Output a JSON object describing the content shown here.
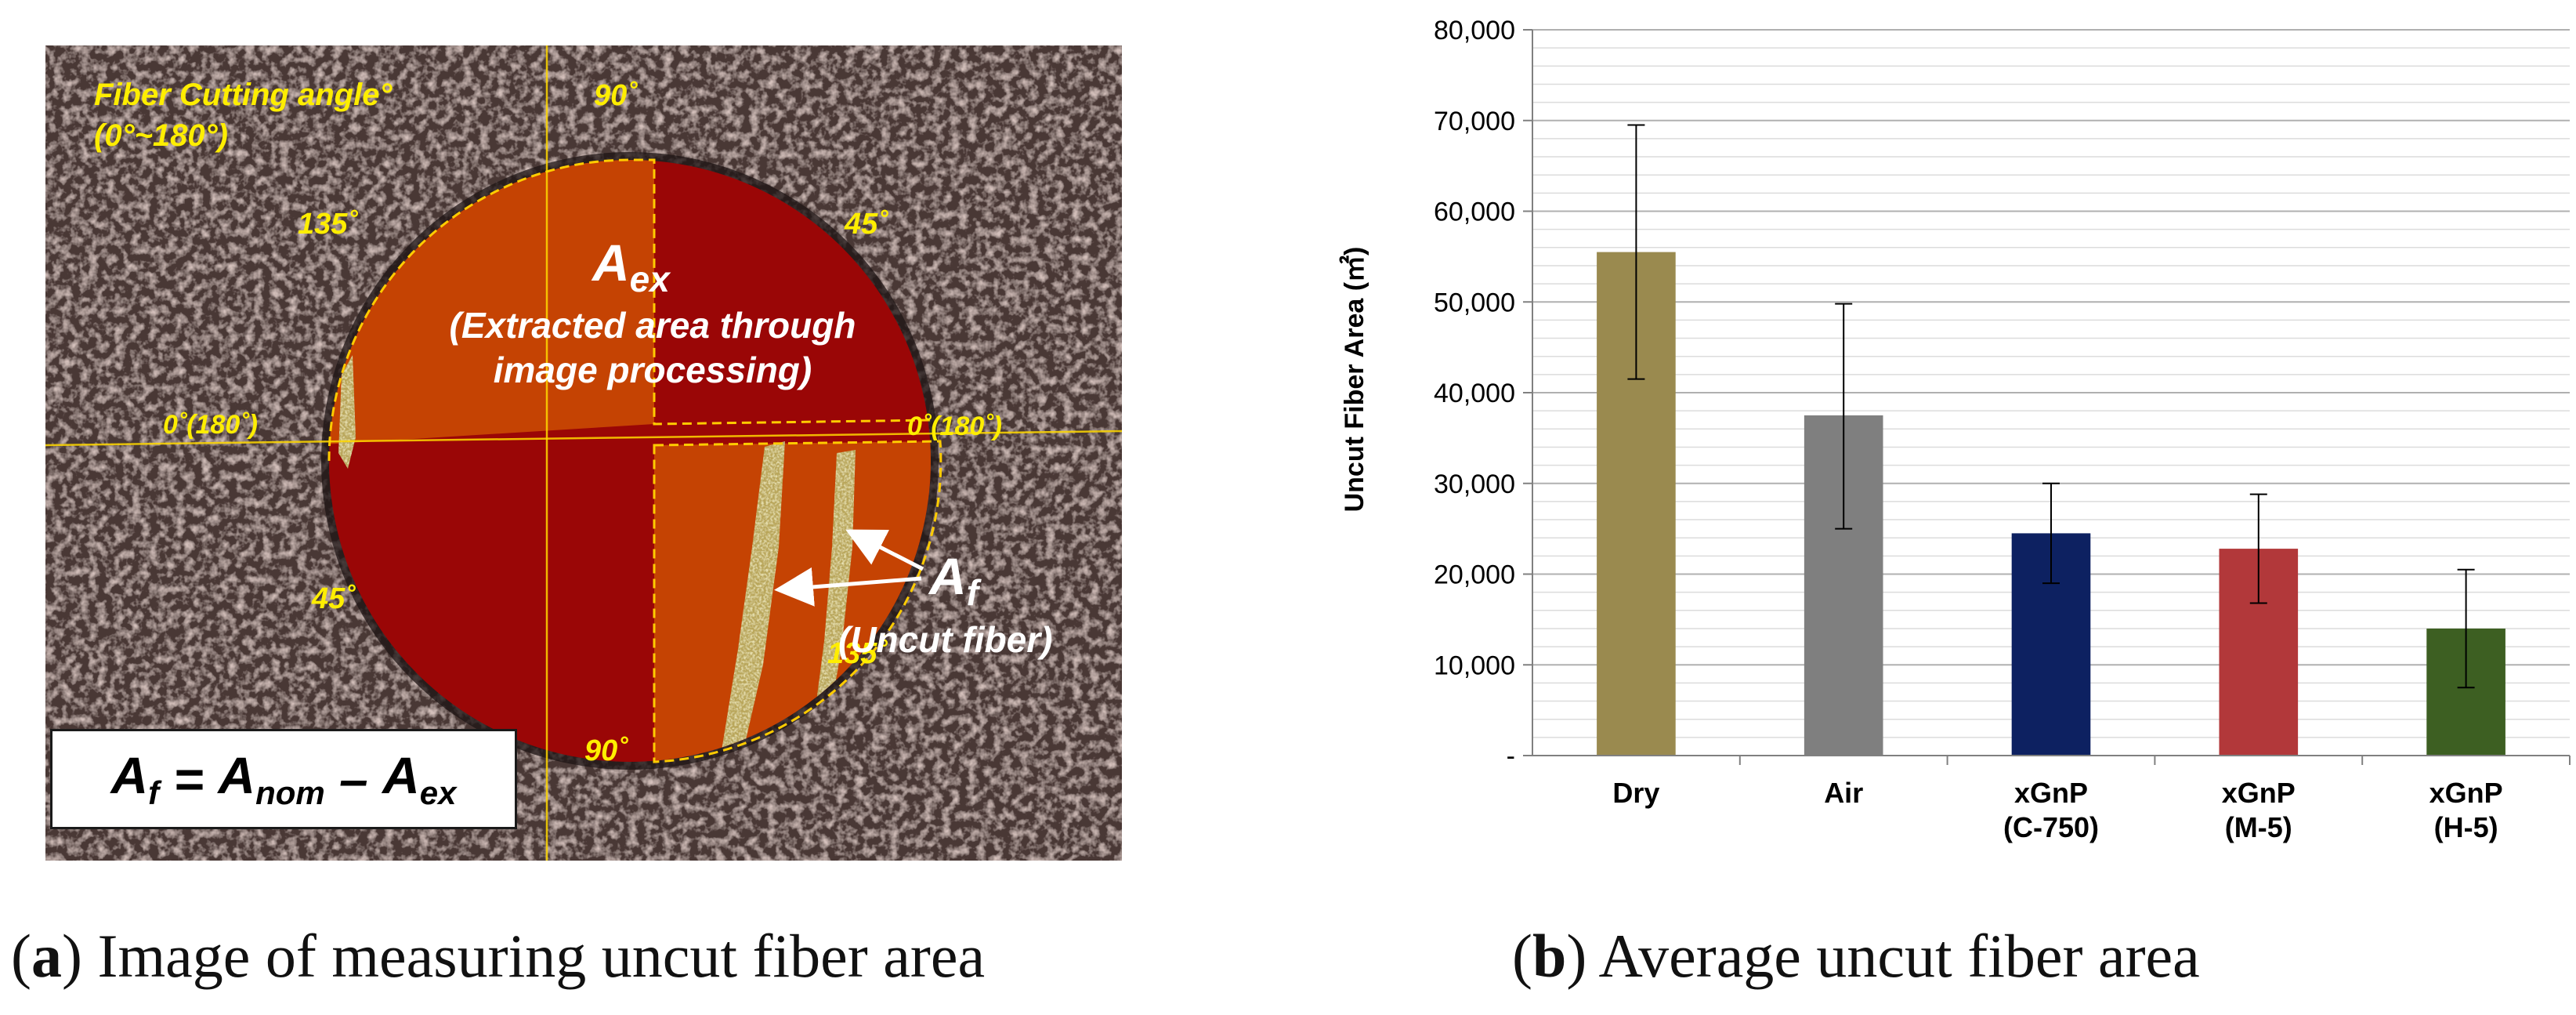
{
  "panel_a": {
    "labels": {
      "fiber_cutting_angle": "Fiber Cutting angle°",
      "angle_range": "(0°~180°)",
      "deg_90_top": "90˚",
      "deg_90_bottom": "90˚",
      "deg_135_left": "135˚",
      "deg_45_right": "45˚",
      "deg_45_left": "45˚",
      "deg_135_right": "135˚",
      "zero_left": "0˚(180˚)",
      "zero_right": "0˚(180˚)",
      "a_ex_main": "A",
      "a_ex_sub": "ex",
      "extracted_line1": "(Extracted area through",
      "extracted_line2": "image processing)",
      "a_f_main": "A",
      "a_f_sub": "f",
      "uncut_fiber": "(Uncut fiber)"
    },
    "formula": {
      "af": "A",
      "af_sub": "f",
      "eq": " = ",
      "anom": "A",
      "anom_sub": "nom",
      "minus": " – ",
      "aex": "A",
      "aex_sub": "ex"
    },
    "colors": {
      "dark_red": "#9a0606",
      "orange": "#c54303",
      "annotation_yellow": "#ffee00"
    }
  },
  "captions": {
    "a_letter": "a",
    "a_text": " Image of measuring uncut fiber area",
    "b_letter": "b",
    "b_text": " Average uncut fiber area"
  },
  "chart_data": {
    "type": "bar",
    "title": "",
    "xlabel": "",
    "ylabel": "Uncut Fiber Area (㎡)",
    "ylim": [
      0,
      80000
    ],
    "yticks": [
      0,
      10000,
      20000,
      30000,
      40000,
      50000,
      60000,
      70000,
      80000
    ],
    "ytick_labels": [
      "-",
      "10,000",
      "20,000",
      "30,000",
      "40,000",
      "50,000",
      "60,000",
      "70,000",
      "80,000"
    ],
    "minor_gridline_step": 2000,
    "grid": true,
    "categories": [
      [
        "Dry"
      ],
      [
        "Air"
      ],
      [
        "xGnP",
        "(C-750)"
      ],
      [
        "xGnP",
        "(M-5)"
      ],
      [
        "xGnP",
        "(H-5)"
      ]
    ],
    "values": [
      55500,
      37500,
      24500,
      22800,
      14000
    ],
    "error_low": [
      41500,
      25000,
      19000,
      16800,
      7500
    ],
    "error_high": [
      69500,
      49800,
      30000,
      28800,
      20500
    ],
    "colors": [
      "#9a8a4f",
      "#7f7f7f",
      "#0d2161",
      "#b2383a",
      "#3d5f22"
    ]
  }
}
